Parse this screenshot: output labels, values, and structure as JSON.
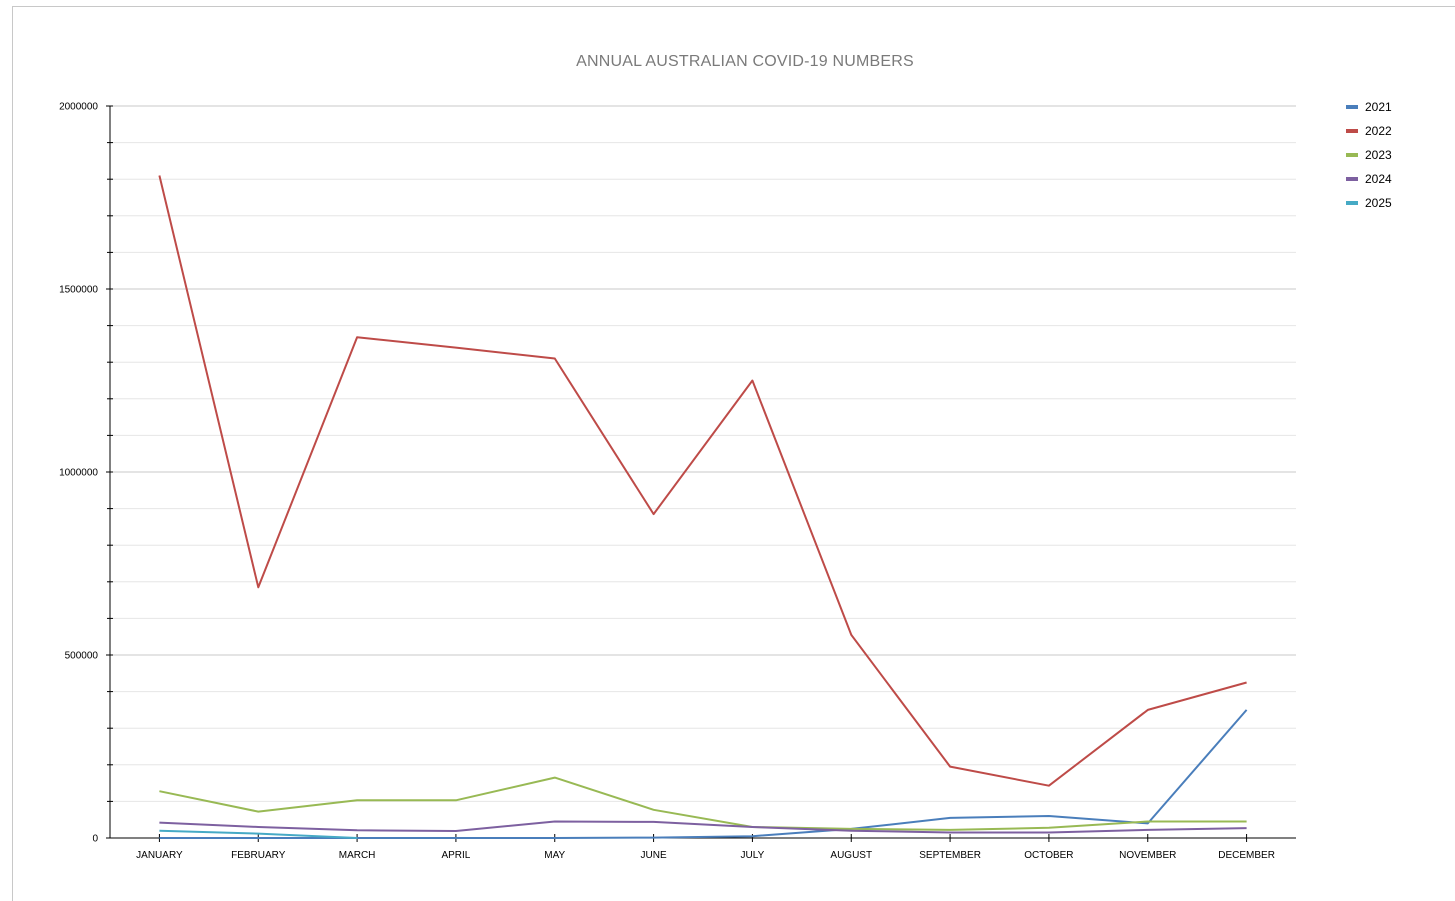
{
  "chart_data": {
    "type": "line",
    "title": "ANNUAL AUSTRALIAN COVID-19 NUMBERS",
    "xlabel": "",
    "ylabel": "",
    "categories": [
      "JANUARY",
      "FEBRUARY",
      "MARCH",
      "APRIL",
      "MAY",
      "JUNE",
      "JULY",
      "AUGUST",
      "SEPTEMBER",
      "OCTOBER",
      "NOVEMBER",
      "DECEMBER"
    ],
    "ylim": [
      0,
      2000000
    ],
    "yticks": [
      "0",
      "500000",
      "1000000",
      "1500000",
      "2000000"
    ],
    "grid": true,
    "legend_position": "top-right",
    "series": [
      {
        "name": "2021",
        "color": "#4a7ebb",
        "values": [
          0,
          0,
          0,
          0,
          0,
          1000,
          5000,
          25000,
          55000,
          60000,
          40000,
          350000
        ]
      },
      {
        "name": "2022",
        "color": "#be4b48",
        "values": [
          1810000,
          685000,
          1368000,
          1340000,
          1310000,
          885000,
          1250000,
          555000,
          195000,
          143000,
          350000,
          425000
        ]
      },
      {
        "name": "2023",
        "color": "#98b954",
        "values": [
          128000,
          72000,
          103000,
          103000,
          165000,
          77000,
          30000,
          25000,
          22000,
          28000,
          45000,
          45000
        ]
      },
      {
        "name": "2024",
        "color": "#7d60a0",
        "values": [
          42000,
          30000,
          21000,
          19000,
          45000,
          44000,
          30000,
          20000,
          15000,
          15000,
          22000,
          27000
        ]
      },
      {
        "name": "2025",
        "color": "#46aac5",
        "values": [
          20000,
          12000,
          0,
          null,
          null,
          null,
          null,
          null,
          null,
          null,
          null,
          null
        ]
      }
    ]
  }
}
